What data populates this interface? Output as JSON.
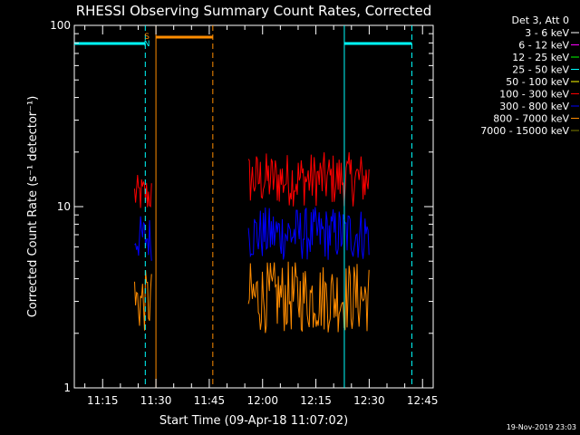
{
  "chart_data": {
    "type": "line",
    "title": "RHESSI Observing Summary Count Rates, Corrected",
    "xlabel": "Start Time (09-Apr-18 11:07:02)",
    "ylabel": "Corrected Count Rate (s⁻¹ detector⁻¹)",
    "yscale": "log",
    "ylim": [
      1,
      100
    ],
    "xlim": [
      "11:07:02",
      "12:48:00"
    ],
    "x_ticks": [
      "11:15",
      "11:30",
      "11:45",
      "12:00",
      "12:15",
      "12:30",
      "12:45"
    ],
    "y_ticks": [
      "1",
      "10",
      "100"
    ],
    "legend_title": "Det 3, Att 0",
    "legend_position": "right",
    "footer": "19-Nov-2019 23:03",
    "flag_labels": [
      "S",
      "N"
    ],
    "series": [
      {
        "name": "3 - 6 keV",
        "color": "#ffffff",
        "segments": []
      },
      {
        "name": "6 - 12 keV",
        "color": "#ff00ff",
        "segments": []
      },
      {
        "name": "12 - 25 keV",
        "color": "#00ff00",
        "segments": []
      },
      {
        "name": "25 - 50 keV",
        "color": "#00ffff",
        "segments": []
      },
      {
        "name": "50 - 100 keV",
        "color": "#ffff00",
        "segments": []
      },
      {
        "name": "100 - 300 keV",
        "color": "#ff0000",
        "segments": [
          {
            "start": "11:24",
            "end": "11:29",
            "min": 9.0,
            "max": 15.0
          },
          {
            "start": "11:56",
            "end": "12:30",
            "min": 10.0,
            "max": 20.0
          }
        ]
      },
      {
        "name": "300 - 800 keV",
        "color": "#0000ff",
        "segments": [
          {
            "start": "11:24",
            "end": "11:29",
            "min": 5.0,
            "max": 9.0
          },
          {
            "start": "11:56",
            "end": "12:30",
            "min": 5.0,
            "max": 10.0
          }
        ]
      },
      {
        "name": "800 - 7000 keV",
        "color": "#ff8c00",
        "segments": [
          {
            "start": "11:24",
            "end": "11:29",
            "min": 2.0,
            "max": 4.5
          },
          {
            "start": "11:56",
            "end": "12:30",
            "min": 2.0,
            "max": 5.0
          }
        ]
      },
      {
        "name": "7000 - 15000 keV",
        "color": "#808000",
        "segments": []
      }
    ],
    "indicators": [
      {
        "label": "SAA",
        "color": "#ff8c00",
        "start": "11:30",
        "end": "11:46",
        "dash_end": "11:46"
      },
      {
        "label": "Night",
        "color": "#00ffff",
        "intervals": [
          [
            "11:07",
            "11:27"
          ],
          [
            "12:23",
            "12:42"
          ]
        ]
      }
    ]
  }
}
